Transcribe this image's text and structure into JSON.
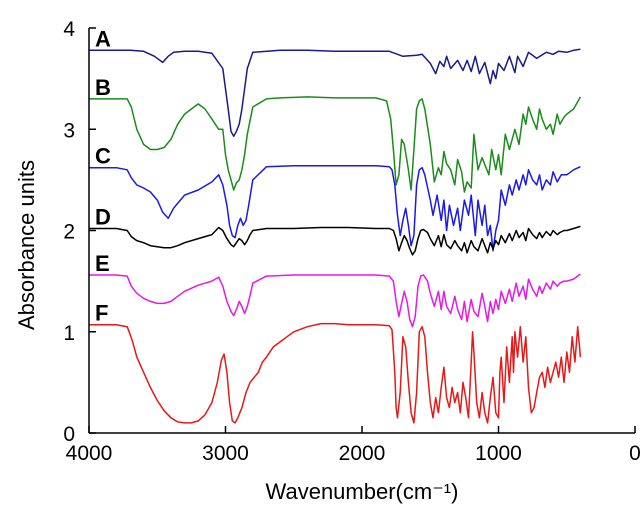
{
  "chart_data": {
    "type": "line",
    "title": "",
    "xlabel": "Wavenumber(cm⁻¹)",
    "ylabel": "Absorbance units",
    "xlim": [
      4000,
      0
    ],
    "ylim": [
      0,
      4
    ],
    "x_reversed": true,
    "grid": false,
    "x_ticks": [
      4000,
      3000,
      2000,
      1000,
      0
    ],
    "y_ticks": [
      0,
      1,
      2,
      3,
      4
    ],
    "series": [
      {
        "name": "A",
        "color": "#1a1a8c",
        "x": [
          4000,
          3800,
          3700,
          3600,
          3520,
          3460,
          3420,
          3380,
          3300,
          3200,
          3100,
          3020,
          2980,
          2960,
          2940,
          2920,
          2900,
          2880,
          2860,
          2840,
          2800,
          2600,
          2400,
          2200,
          2000,
          1800,
          1700,
          1600,
          1560,
          1500,
          1460,
          1430,
          1400,
          1380,
          1350,
          1300,
          1260,
          1230,
          1200,
          1170,
          1140,
          1100,
          1060,
          1040,
          1020,
          1000,
          960,
          920,
          880,
          860,
          820,
          780,
          720,
          650,
          600,
          560,
          500,
          450,
          400
        ],
        "y": [
          3.78,
          3.78,
          3.78,
          3.77,
          3.72,
          3.66,
          3.72,
          3.76,
          3.77,
          3.77,
          3.75,
          3.6,
          3.2,
          2.98,
          2.93,
          2.98,
          3.05,
          3.2,
          3.4,
          3.6,
          3.76,
          3.78,
          3.78,
          3.77,
          3.77,
          3.77,
          3.72,
          3.73,
          3.74,
          3.65,
          3.55,
          3.67,
          3.62,
          3.72,
          3.6,
          3.68,
          3.58,
          3.68,
          3.57,
          3.72,
          3.55,
          3.66,
          3.45,
          3.58,
          3.5,
          3.65,
          3.58,
          3.72,
          3.56,
          3.72,
          3.62,
          3.76,
          3.7,
          3.76,
          3.74,
          3.77,
          3.76,
          3.78,
          3.79
        ]
      },
      {
        "name": "B",
        "color": "#1a8c1a",
        "x": [
          4000,
          3800,
          3720,
          3690,
          3650,
          3600,
          3550,
          3500,
          3450,
          3400,
          3350,
          3300,
          3250,
          3200,
          3150,
          3100,
          3050,
          3020,
          3000,
          2980,
          2960,
          2940,
          2920,
          2900,
          2880,
          2860,
          2840,
          2800,
          2700,
          2600,
          2400,
          2200,
          2000,
          1900,
          1820,
          1790,
          1770,
          1750,
          1730,
          1710,
          1690,
          1660,
          1640,
          1620,
          1600,
          1580,
          1560,
          1540,
          1500,
          1470,
          1440,
          1420,
          1400,
          1380,
          1350,
          1320,
          1300,
          1270,
          1250,
          1230,
          1200,
          1180,
          1150,
          1120,
          1100,
          1070,
          1050,
          1020,
          1000,
          980,
          950,
          920,
          880,
          850,
          820,
          800,
          780,
          750,
          720,
          700,
          680,
          650,
          620,
          600,
          570,
          550,
          520,
          500,
          450,
          400
        ],
        "y": [
          3.3,
          3.3,
          3.3,
          3.22,
          3.0,
          2.85,
          2.8,
          2.8,
          2.82,
          2.9,
          3.05,
          3.15,
          3.2,
          3.25,
          3.2,
          3.1,
          3.0,
          3.0,
          2.75,
          2.6,
          2.5,
          2.4,
          2.47,
          2.5,
          2.6,
          2.75,
          2.95,
          3.22,
          3.3,
          3.31,
          3.32,
          3.31,
          3.31,
          3.31,
          3.28,
          3.1,
          2.8,
          2.45,
          2.55,
          2.9,
          2.85,
          2.6,
          2.4,
          2.8,
          3.2,
          3.28,
          3.3,
          3.2,
          2.85,
          2.48,
          2.62,
          2.55,
          2.78,
          2.66,
          2.6,
          2.45,
          2.7,
          2.58,
          2.38,
          2.48,
          2.42,
          2.95,
          2.6,
          2.72,
          2.65,
          2.55,
          2.8,
          2.6,
          2.75,
          2.55,
          2.95,
          2.8,
          3.0,
          2.85,
          3.15,
          3.05,
          3.22,
          3.1,
          3.0,
          3.2,
          3.1,
          3.0,
          3.05,
          2.95,
          3.15,
          3.05,
          3.12,
          3.15,
          3.2,
          3.32
        ]
      },
      {
        "name": "C",
        "color": "#1a1ae6",
        "x": [
          4000,
          3800,
          3720,
          3690,
          3650,
          3600,
          3550,
          3500,
          3460,
          3420,
          3380,
          3300,
          3200,
          3100,
          3050,
          3020,
          2990,
          2970,
          2950,
          2930,
          2910,
          2890,
          2870,
          2850,
          2830,
          2800,
          2700,
          2500,
          2300,
          2100,
          1900,
          1800,
          1780,
          1760,
          1740,
          1720,
          1700,
          1680,
          1660,
          1640,
          1620,
          1600,
          1580,
          1560,
          1540,
          1500,
          1480,
          1450,
          1420,
          1400,
          1380,
          1360,
          1330,
          1300,
          1280,
          1250,
          1220,
          1200,
          1170,
          1150,
          1120,
          1100,
          1080,
          1060,
          1040,
          1020,
          1000,
          980,
          950,
          920,
          900,
          870,
          850,
          820,
          800,
          780,
          750,
          720,
          700,
          680,
          650,
          620,
          600,
          570,
          540,
          500,
          450,
          400
        ],
        "y": [
          2.62,
          2.62,
          2.6,
          2.52,
          2.45,
          2.42,
          2.38,
          2.3,
          2.18,
          2.12,
          2.22,
          2.35,
          2.4,
          2.48,
          2.55,
          2.45,
          2.25,
          2.05,
          1.95,
          1.93,
          2.05,
          2.12,
          2.05,
          2.1,
          2.25,
          2.5,
          2.63,
          2.64,
          2.64,
          2.64,
          2.64,
          2.63,
          2.6,
          2.45,
          2.15,
          1.95,
          2.1,
          2.22,
          2.05,
          1.85,
          1.95,
          2.45,
          2.6,
          2.62,
          2.55,
          2.3,
          2.15,
          2.35,
          2.1,
          2.3,
          2.0,
          2.25,
          2.05,
          2.22,
          2.0,
          2.3,
          2.15,
          2.35,
          1.95,
          2.3,
          2.05,
          2.25,
          1.95,
          2.05,
          1.8,
          2.0,
          2.1,
          2.4,
          2.25,
          2.45,
          2.35,
          2.5,
          2.4,
          2.55,
          2.45,
          2.6,
          2.5,
          2.45,
          2.55,
          2.4,
          2.5,
          2.45,
          2.58,
          2.48,
          2.55,
          2.55,
          2.6,
          2.63
        ]
      },
      {
        "name": "D",
        "color": "#000000",
        "x": [
          4000,
          3800,
          3720,
          3690,
          3650,
          3600,
          3550,
          3500,
          3450,
          3400,
          3350,
          3300,
          3200,
          3100,
          3050,
          3020,
          2990,
          2960,
          2940,
          2920,
          2900,
          2880,
          2860,
          2840,
          2820,
          2800,
          2700,
          2500,
          2300,
          2100,
          1900,
          1800,
          1770,
          1750,
          1730,
          1710,
          1690,
          1670,
          1650,
          1630,
          1610,
          1590,
          1570,
          1550,
          1520,
          1500,
          1470,
          1440,
          1420,
          1400,
          1380,
          1350,
          1320,
          1300,
          1270,
          1250,
          1230,
          1200,
          1180,
          1150,
          1120,
          1100,
          1080,
          1060,
          1040,
          1020,
          1000,
          980,
          950,
          920,
          900,
          870,
          850,
          820,
          800,
          780,
          750,
          720,
          700,
          680,
          650,
          620,
          600,
          570,
          550,
          520,
          500,
          450,
          400
        ],
        "y": [
          2.02,
          2.02,
          2.0,
          1.94,
          1.9,
          1.88,
          1.85,
          1.84,
          1.83,
          1.83,
          1.85,
          1.88,
          1.92,
          1.96,
          2.03,
          2.0,
          1.92,
          1.86,
          1.84,
          1.88,
          1.92,
          1.9,
          1.86,
          1.9,
          1.96,
          2.0,
          2.02,
          2.02,
          2.03,
          2.03,
          2.02,
          2.02,
          2.0,
          1.92,
          1.8,
          1.88,
          1.95,
          1.9,
          1.82,
          1.76,
          1.8,
          1.92,
          2.0,
          2.01,
          1.98,
          1.92,
          1.85,
          1.95,
          1.84,
          1.96,
          1.86,
          1.82,
          1.9,
          1.85,
          1.8,
          1.88,
          1.78,
          1.9,
          1.84,
          1.8,
          1.92,
          1.85,
          1.78,
          1.88,
          1.82,
          1.9,
          1.86,
          1.95,
          1.88,
          1.97,
          1.9,
          2.0,
          1.93,
          1.98,
          1.9,
          2.02,
          1.96,
          1.92,
          1.98,
          1.93,
          1.99,
          1.95,
          2.0,
          1.96,
          1.98,
          2.0,
          2.0,
          2.02,
          2.04
        ]
      },
      {
        "name": "E",
        "color": "#e619e6",
        "x": [
          4000,
          3800,
          3720,
          3690,
          3650,
          3600,
          3550,
          3500,
          3450,
          3400,
          3350,
          3300,
          3200,
          3100,
          3050,
          3020,
          2990,
          2960,
          2940,
          2920,
          2900,
          2880,
          2860,
          2840,
          2820,
          2800,
          2700,
          2500,
          2300,
          2100,
          1900,
          1800,
          1770,
          1750,
          1730,
          1710,
          1690,
          1670,
          1650,
          1630,
          1610,
          1590,
          1570,
          1550,
          1520,
          1500,
          1470,
          1440,
          1420,
          1400,
          1380,
          1350,
          1320,
          1300,
          1270,
          1250,
          1230,
          1200,
          1180,
          1150,
          1120,
          1100,
          1080,
          1060,
          1040,
          1020,
          1000,
          980,
          950,
          920,
          900,
          870,
          850,
          820,
          800,
          780,
          750,
          720,
          700,
          680,
          650,
          620,
          600,
          570,
          550,
          520,
          500,
          450,
          400
        ],
        "y": [
          1.56,
          1.56,
          1.55,
          1.45,
          1.38,
          1.33,
          1.3,
          1.28,
          1.28,
          1.3,
          1.35,
          1.4,
          1.46,
          1.5,
          1.54,
          1.45,
          1.3,
          1.2,
          1.16,
          1.22,
          1.3,
          1.25,
          1.18,
          1.25,
          1.36,
          1.48,
          1.55,
          1.56,
          1.56,
          1.56,
          1.56,
          1.55,
          1.5,
          1.3,
          1.15,
          1.28,
          1.4,
          1.3,
          1.12,
          1.05,
          1.15,
          1.45,
          1.55,
          1.56,
          1.5,
          1.38,
          1.25,
          1.4,
          1.22,
          1.4,
          1.25,
          1.18,
          1.35,
          1.22,
          1.12,
          1.3,
          1.1,
          1.32,
          1.2,
          1.15,
          1.38,
          1.25,
          1.1,
          1.3,
          1.18,
          1.32,
          1.22,
          1.4,
          1.28,
          1.42,
          1.3,
          1.48,
          1.35,
          1.45,
          1.32,
          1.52,
          1.42,
          1.35,
          1.45,
          1.38,
          1.48,
          1.42,
          1.5,
          1.45,
          1.48,
          1.5,
          1.5,
          1.52,
          1.57
        ]
      },
      {
        "name": "F",
        "color": "#e61919",
        "x": [
          4000,
          3800,
          3720,
          3700,
          3680,
          3650,
          3600,
          3550,
          3500,
          3450,
          3400,
          3350,
          3300,
          3250,
          3200,
          3150,
          3100,
          3060,
          3030,
          3010,
          2990,
          2970,
          2950,
          2930,
          2910,
          2880,
          2850,
          2820,
          2790,
          2760,
          2730,
          2700,
          2650,
          2600,
          2550,
          2500,
          2400,
          2300,
          2200,
          2100,
          2000,
          1900,
          1800,
          1780,
          1760,
          1750,
          1740,
          1720,
          1700,
          1680,
          1660,
          1640,
          1620,
          1600,
          1580,
          1560,
          1540,
          1520,
          1500,
          1480,
          1460,
          1440,
          1420,
          1400,
          1380,
          1360,
          1340,
          1320,
          1300,
          1280,
          1260,
          1240,
          1220,
          1200,
          1190,
          1180,
          1160,
          1140,
          1120,
          1100,
          1080,
          1060,
          1040,
          1020,
          1000,
          990,
          980,
          960,
          940,
          920,
          900,
          890,
          880,
          860,
          840,
          820,
          800,
          780,
          760,
          740,
          720,
          700,
          680,
          660,
          640,
          620,
          600,
          580,
          560,
          540,
          520,
          500,
          480,
          460,
          440,
          420,
          400
        ],
        "y": [
          1.07,
          1.07,
          1.05,
          0.98,
          0.9,
          0.75,
          0.6,
          0.45,
          0.32,
          0.22,
          0.15,
          0.11,
          0.1,
          0.1,
          0.12,
          0.18,
          0.3,
          0.5,
          0.72,
          0.78,
          0.6,
          0.3,
          0.12,
          0.1,
          0.15,
          0.25,
          0.4,
          0.5,
          0.55,
          0.6,
          0.7,
          0.75,
          0.85,
          0.9,
          0.95,
          1.0,
          1.05,
          1.08,
          1.08,
          1.07,
          1.07,
          1.07,
          1.06,
          1.02,
          0.6,
          0.25,
          0.15,
          0.4,
          0.95,
          0.85,
          0.5,
          0.2,
          0.1,
          0.4,
          1.0,
          1.05,
          0.95,
          0.6,
          0.3,
          0.15,
          0.35,
          0.2,
          0.45,
          0.65,
          0.35,
          0.25,
          0.45,
          0.3,
          0.4,
          0.2,
          0.5,
          0.35,
          0.15,
          0.7,
          1.0,
          0.8,
          0.3,
          0.15,
          0.4,
          0.2,
          0.1,
          0.35,
          0.55,
          0.2,
          0.15,
          0.6,
          0.75,
          0.3,
          0.85,
          0.5,
          0.95,
          0.6,
          1.0,
          0.75,
          1.05,
          0.7,
          0.95,
          0.45,
          0.2,
          0.25,
          0.4,
          0.55,
          0.6,
          0.45,
          0.65,
          0.5,
          0.6,
          0.7,
          0.55,
          0.75,
          0.5,
          0.8,
          0.6,
          0.95,
          0.7,
          1.05,
          0.75
        ]
      }
    ]
  }
}
